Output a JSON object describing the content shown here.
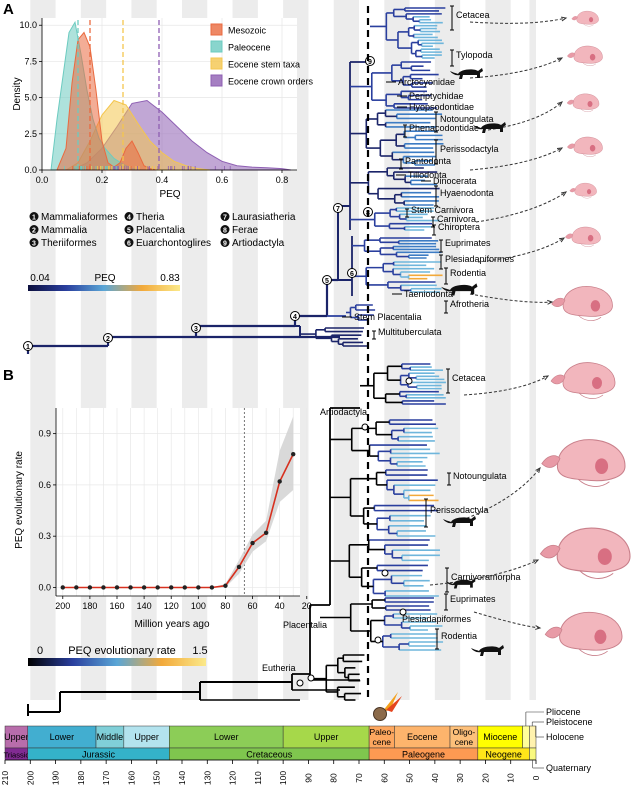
{
  "panels": {
    "a": "A",
    "b": "B"
  },
  "chart_data": [
    {
      "type": "area",
      "panel": "A-inset",
      "xlabel": "PEQ",
      "ylabel": "Density",
      "xlim": [
        0.0,
        0.85
      ],
      "ylim": [
        0.0,
        10.5
      ],
      "x_ticks": [
        "0.0",
        "0.2",
        "0.4",
        "0.6",
        "0.8"
      ],
      "y_ticks": [
        "0.0",
        "2.5",
        "5.0",
        "7.5",
        "10.0"
      ],
      "legend_position": "top-right",
      "series": [
        {
          "name": "Mesozoic",
          "color": "#ea6a3f",
          "mean_line": 0.16,
          "x": [
            0.05,
            0.08,
            0.1,
            0.12,
            0.14,
            0.16,
            0.18,
            0.2,
            0.22,
            0.24,
            0.26,
            0.28,
            0.3,
            0.32,
            0.34,
            0.36,
            0.38
          ],
          "y": [
            0.0,
            1.5,
            6.0,
            9.0,
            9.5,
            8.5,
            5.5,
            2.0,
            0.5,
            0.2,
            0.5,
            1.5,
            2.0,
            1.2,
            0.3,
            0.1,
            0.0
          ]
        },
        {
          "name": "Paleocene",
          "color": "#6ccbc0",
          "mean_line": 0.12,
          "x": [
            0.03,
            0.05,
            0.07,
            0.09,
            0.11,
            0.13,
            0.15,
            0.17,
            0.19,
            0.21,
            0.24,
            0.27,
            0.3,
            0.33
          ],
          "y": [
            0.0,
            3.5,
            6.5,
            9.5,
            10.2,
            8.0,
            5.5,
            3.5,
            2.2,
            1.5,
            0.8,
            0.4,
            0.1,
            0.0
          ]
        },
        {
          "name": "Eocene stem taxa",
          "color": "#f4c64e",
          "mean_line": 0.27,
          "x": [
            0.08,
            0.12,
            0.16,
            0.2,
            0.24,
            0.28,
            0.32,
            0.36,
            0.4,
            0.44,
            0.48,
            0.52,
            0.56
          ],
          "y": [
            0.0,
            0.5,
            2.0,
            3.8,
            4.8,
            4.5,
            3.2,
            2.0,
            1.2,
            0.6,
            0.3,
            0.1,
            0.0
          ]
        },
        {
          "name": "Eocene crown orders",
          "color": "#8e5fb3",
          "mean_line": 0.39,
          "x": [
            0.1,
            0.15,
            0.2,
            0.25,
            0.3,
            0.35,
            0.4,
            0.45,
            0.5,
            0.55,
            0.6,
            0.65,
            0.7,
            0.75,
            0.8,
            0.83
          ],
          "y": [
            0.0,
            0.5,
            1.5,
            3.0,
            4.6,
            4.8,
            4.0,
            3.0,
            2.0,
            1.2,
            0.6,
            0.3,
            0.2,
            0.15,
            0.1,
            0.0
          ]
        }
      ]
    },
    {
      "type": "line",
      "panel": "B-inset",
      "xlabel": "Million years ago",
      "ylabel": "PEQ evolutionary rate",
      "xlim": [
        205,
        25
      ],
      "ylim": [
        -0.05,
        1.05
      ],
      "x_ticks": [
        "200",
        "180",
        "160",
        "140",
        "120",
        "100",
        "80",
        "60",
        "40",
        "20"
      ],
      "y_ticks": [
        "0.0",
        "0.3",
        "0.6",
        "0.9"
      ],
      "vertical_line": 66,
      "series": [
        {
          "name": "",
          "color": "#d7301f",
          "x": [
            200,
            190,
            180,
            170,
            160,
            150,
            140,
            130,
            120,
            110,
            100,
            90,
            80,
            70,
            60,
            50,
            40,
            30
          ],
          "y": [
            0.0,
            0.0,
            0.0,
            0.0,
            0.0,
            0.0,
            0.0,
            0.0,
            0.0,
            0.0,
            0.0,
            0.0,
            0.01,
            0.12,
            0.26,
            0.32,
            0.62,
            0.78
          ],
          "ci_low": [
            0.0,
            0.0,
            0.0,
            0.0,
            0.0,
            0.0,
            0.0,
            0.0,
            0.0,
            0.0,
            0.0,
            0.0,
            0.0,
            0.08,
            0.21,
            0.27,
            0.5,
            0.57
          ],
          "ci_high": [
            0.0,
            0.0,
            0.0,
            0.0,
            0.0,
            0.0,
            0.0,
            0.0,
            0.0,
            0.0,
            0.0,
            0.0,
            0.02,
            0.16,
            0.31,
            0.39,
            0.8,
            1.0
          ]
        }
      ]
    }
  ],
  "panel_a": {
    "node_legend": [
      {
        "n": "1",
        "label": "Mammaliaformes"
      },
      {
        "n": "2",
        "label": "Mammalia"
      },
      {
        "n": "3",
        "label": "Theriiformes"
      },
      {
        "n": "4",
        "label": "Theria"
      },
      {
        "n": "5",
        "label": "Placentalia"
      },
      {
        "n": "6",
        "label": "Euarchontoglires"
      },
      {
        "n": "7",
        "label": "Laurasiatheria"
      },
      {
        "n": "8",
        "label": "Ferae"
      },
      {
        "n": "9",
        "label": "Artiodactyla"
      }
    ],
    "colorbar": {
      "title": "PEQ",
      "min": "0.04",
      "max": "0.83",
      "colors": [
        "#0c0f3d",
        "#2a3f9e",
        "#5aa6d6",
        "#f2a93b",
        "#fbe98a"
      ]
    },
    "clades": [
      {
        "label": "Cetacea",
        "group": true
      },
      {
        "label": "Tylopoda",
        "group": true
      },
      {
        "label": "Arctocyonidae",
        "group": false
      },
      {
        "label": "Periptychidae",
        "group": false
      },
      {
        "label": "Hyopsodontidae",
        "group": false
      },
      {
        "label": "Notoungulata",
        "group": true
      },
      {
        "label": "Phenacodontidae",
        "group": true
      },
      {
        "label": "Perissodactyla",
        "group": true
      },
      {
        "label": "Pantodonta",
        "group": true
      },
      {
        "label": "Tillodonta",
        "group": false
      },
      {
        "label": "Dinocerata",
        "group": false
      },
      {
        "label": "Hyaenodonta",
        "group": true
      },
      {
        "label": "Stem Carnivora",
        "group": true
      },
      {
        "label": "Carnivora",
        "group": true
      },
      {
        "label": "Chiroptera",
        "group": true
      },
      {
        "label": "Euprimates",
        "group": true
      },
      {
        "label": "Plesiadapiformes",
        "group": true
      },
      {
        "label": "Rodentia",
        "group": true
      },
      {
        "label": "Taeniodonta",
        "group": true
      },
      {
        "label": "Afrotheria",
        "group": true
      },
      {
        "label": "Stem Placentalia",
        "group": true
      },
      {
        "label": "Multituberculata",
        "group": true
      }
    ]
  },
  "panel_b": {
    "colorbar": {
      "title": "PEQ evolutionary rate",
      "min": "0",
      "max": "1.5",
      "colors": [
        "#000000",
        "#2a3f9e",
        "#5aa6d6",
        "#f2a93b",
        "#fbe98a"
      ]
    },
    "clades": [
      {
        "label": "Cetacea"
      },
      {
        "label": "Notoungulata"
      },
      {
        "label": "Perissodactyla"
      },
      {
        "label": "Carnivoramorpha"
      },
      {
        "label": "Euprimates"
      },
      {
        "label": "Plesiadapiformes"
      },
      {
        "label": "Rodentia"
      }
    ],
    "node_labels": {
      "artiodactyla": "Artiodactyla",
      "placentalia": "Placentalia",
      "eutheria": "Eutheria"
    }
  },
  "timescale": {
    "ticks": [
      "210",
      "200",
      "190",
      "180",
      "170",
      "160",
      "150",
      "140",
      "130",
      "120",
      "110",
      "100",
      "90",
      "80",
      "70",
      "60",
      "50",
      "40",
      "30",
      "20",
      "10",
      "0"
    ],
    "epochs": [
      {
        "label": "Upper",
        "start": 210,
        "end": 201,
        "color": "#b86dab"
      },
      {
        "label": "Lower",
        "start": 201,
        "end": 174,
        "color": "#42aed0"
      },
      {
        "label": "Middle",
        "start": 174,
        "end": 163,
        "color": "#80cfd8"
      },
      {
        "label": "Upper",
        "start": 163,
        "end": 145,
        "color": "#b3e3ee"
      },
      {
        "label": "Lower",
        "start": 145,
        "end": 100,
        "color": "#8ccd57"
      },
      {
        "label": "Upper",
        "start": 100,
        "end": 66,
        "color": "#a6d84a"
      },
      {
        "label": "Paleo-cene",
        "start": 66,
        "end": 56,
        "color": "#fda75f"
      },
      {
        "label": "Eocene",
        "start": 56,
        "end": 34,
        "color": "#fdb46c"
      },
      {
        "label": "Oligo-cene",
        "start": 34,
        "end": 23,
        "color": "#fdc07a"
      },
      {
        "label": "Miocene",
        "start": 23,
        "end": 5.3,
        "color": "#ffff00"
      },
      {
        "label": "",
        "start": 5.3,
        "end": 2.6,
        "color": "#ffff99"
      },
      {
        "label": "",
        "start": 2.6,
        "end": 0.0,
        "color": "#fff2ae"
      }
    ],
    "periods": [
      {
        "label": "Triassic",
        "start": 210,
        "end": 201,
        "color": "#812b92"
      },
      {
        "label": "Jurassic",
        "start": 201,
        "end": 145,
        "color": "#34b2c9"
      },
      {
        "label": "Cretaceous",
        "start": 145,
        "end": 66,
        "color": "#7fc64e"
      },
      {
        "label": "Paleogene",
        "start": 66,
        "end": 23,
        "color": "#fd9a52"
      },
      {
        "label": "Neogene",
        "start": 23,
        "end": 2.6,
        "color": "#ffe619"
      },
      {
        "label": "",
        "start": 2.6,
        "end": 0.0,
        "color": "#f9f97f"
      }
    ],
    "callouts": [
      "Pliocene",
      "Pleistocene",
      "Holocene",
      "Quaternary"
    ]
  }
}
